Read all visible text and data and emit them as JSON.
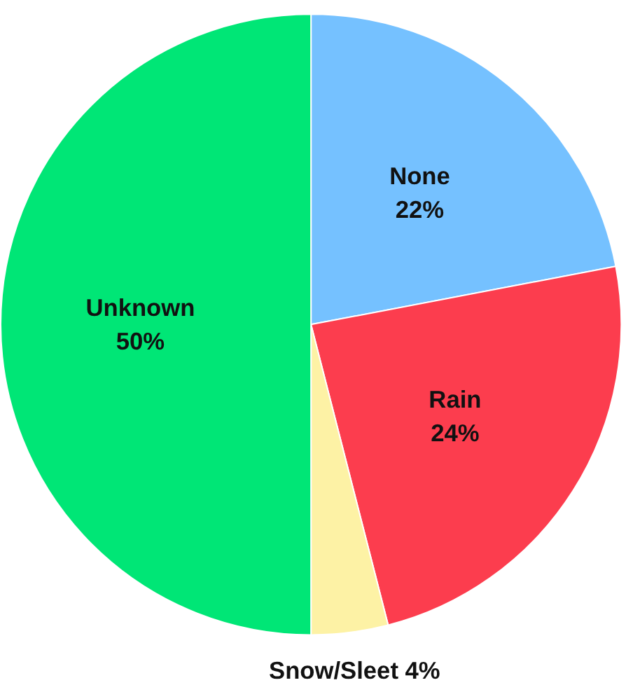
{
  "chart_data": {
    "type": "pie",
    "categories": [
      "None",
      "Rain",
      "Snow/Sleet",
      "Unknown"
    ],
    "values": [
      22,
      24,
      4,
      50
    ],
    "colors": [
      "#75c1ff",
      "#fc3d4e",
      "#fdf2a5",
      "#00e676"
    ],
    "value_labels": [
      "22%",
      "24%",
      "4%",
      "50%"
    ]
  }
}
